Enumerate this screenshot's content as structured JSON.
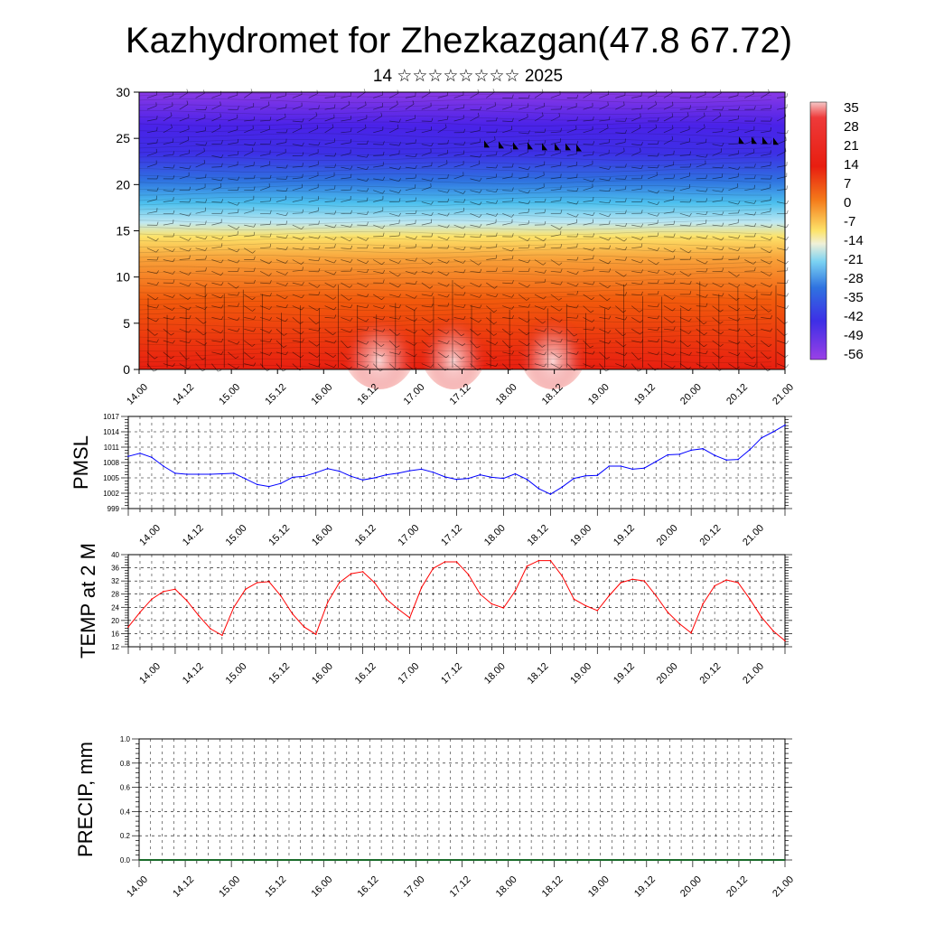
{
  "title": "Kazhydromet for Zhezkazgan(47.8 67.72)",
  "subtitle": "14 ☆☆☆☆☆☆☆☆ 2025",
  "chart_data": [
    {
      "type": "heatmap",
      "ylim": [
        0,
        30
      ],
      "y_ticks": [
        "0",
        "5",
        "10",
        "15",
        "20",
        "25",
        "30"
      ],
      "x_ticks": [
        "14.00",
        "14.12",
        "15.00",
        "15.12",
        "16.00",
        "16.12",
        "17.00",
        "17.12",
        "18.00",
        "18.12",
        "19.00",
        "19.12",
        "20.00",
        "20.12",
        "21.00"
      ],
      "colorbar_labels": [
        "35",
        "28",
        "21",
        "14",
        "7",
        "0",
        "-7",
        "-14",
        "-21",
        "-28",
        "-35",
        "-42",
        "-49",
        "-56"
      ],
      "value_range": [
        -60,
        38
      ],
      "wind_barbs": true
    },
    {
      "type": "line",
      "ylabel": "PMSL",
      "ylim": [
        999,
        1017
      ],
      "y_ticks": [
        "999",
        "1002",
        "1005",
        "1008",
        "1011",
        "1014",
        "1017"
      ],
      "x_ticks": [
        "14.00",
        "14.12",
        "15.00",
        "15.12",
        "16.00",
        "16.12",
        "17.00",
        "17.12",
        "18.00",
        "18.12",
        "19.00",
        "19.12",
        "20.00",
        "20.12",
        "21.00"
      ],
      "x": [
        0,
        3,
        6,
        9,
        12,
        15,
        18,
        21,
        24,
        27,
        30,
        33,
        36,
        39,
        42,
        45,
        48,
        51,
        54,
        57,
        60,
        63,
        66,
        69,
        72,
        75,
        78,
        81,
        84,
        87,
        90,
        93,
        96,
        99,
        102,
        105,
        108,
        111,
        114,
        117,
        120,
        123,
        126,
        129,
        132,
        135,
        138,
        141,
        144,
        147,
        150,
        153,
        156,
        159,
        162,
        165,
        168
      ],
      "series": [
        {
          "color": "#0000ff",
          "values": [
            1009.2,
            1009.8,
            1009,
            1007.3,
            1005.9,
            1005.7,
            1005.7,
            1005.7,
            1005.8,
            1005.9,
            1004.8,
            1003.7,
            1003.3,
            1003.9,
            1005.1,
            1005.3,
            1006,
            1006.8,
            1006.3,
            1005.3,
            1004.6,
            1005,
            1005.6,
            1005.9,
            1006.4,
            1006.7,
            1006.1,
            1005.2,
            1004.7,
            1004.9,
            1005.6,
            1005.1,
            1004.9,
            1005.8,
            1004.7,
            1002.9,
            1001.8,
            1003.2,
            1004.9,
            1005.4,
            1005.5,
            1007.3,
            1007.3,
            1006.7,
            1006.9,
            1008.2,
            1009.5,
            1009.6,
            1010.4,
            1010.7,
            1009.4,
            1008.5,
            1008.6,
            1010.5,
            1012.8,
            1014,
            1015.3
          ]
        }
      ]
    },
    {
      "type": "line",
      "ylabel": "TEMP at 2 M",
      "ylim": [
        12,
        40
      ],
      "y_ticks": [
        "12",
        "16",
        "20",
        "24",
        "28",
        "32",
        "36",
        "40"
      ],
      "x_ticks": [
        "14.00",
        "14.12",
        "15.00",
        "15.12",
        "16.00",
        "16.12",
        "17.00",
        "17.12",
        "18.00",
        "18.12",
        "19.00",
        "19.12",
        "20.00",
        "20.12",
        "21.00"
      ],
      "x": [
        0,
        3,
        6,
        9,
        12,
        15,
        18,
        21,
        24,
        27,
        30,
        33,
        36,
        39,
        42,
        45,
        48,
        51,
        54,
        57,
        60,
        63,
        66,
        69,
        72,
        75,
        78,
        81,
        84,
        87,
        90,
        93,
        96,
        99,
        102,
        105,
        108,
        111,
        114,
        117,
        120,
        123,
        126,
        129,
        132,
        135,
        138,
        141,
        144,
        147,
        150,
        153,
        156,
        159,
        162,
        165,
        168
      ],
      "series": [
        {
          "color": "#ff0000",
          "values": [
            18,
            22.5,
            26.5,
            28.8,
            29.5,
            26,
            21.5,
            17.5,
            15.5,
            24,
            29.5,
            31.5,
            31.8,
            27.5,
            22,
            18,
            15.8,
            25.5,
            31.5,
            34.2,
            34.8,
            31.5,
            26.5,
            23.5,
            20.8,
            30,
            35.8,
            37.8,
            37.8,
            34,
            28,
            25,
            23.8,
            29,
            36.5,
            38.2,
            38.2,
            33.5,
            26.5,
            24.5,
            23,
            27.5,
            31.5,
            32.5,
            32,
            27.5,
            22.5,
            19,
            16.2,
            25,
            30.5,
            32.3,
            31.5,
            26.5,
            21,
            16.8,
            13.8
          ]
        }
      ]
    },
    {
      "type": "bar",
      "ylabel": "PRECIP, mm",
      "ylim": [
        0,
        1
      ],
      "y_ticks": [
        "0.0",
        "0.2",
        "0.4",
        "0.6",
        "0.8",
        "1.0"
      ],
      "x_ticks": [
        "14.00",
        "14.12",
        "15.00",
        "15.12",
        "16.00",
        "16.12",
        "17.00",
        "17.12",
        "18.00",
        "18.12",
        "19.00",
        "19.12",
        "20.00",
        "20.12",
        "21.00"
      ],
      "values": [
        0
      ]
    }
  ]
}
